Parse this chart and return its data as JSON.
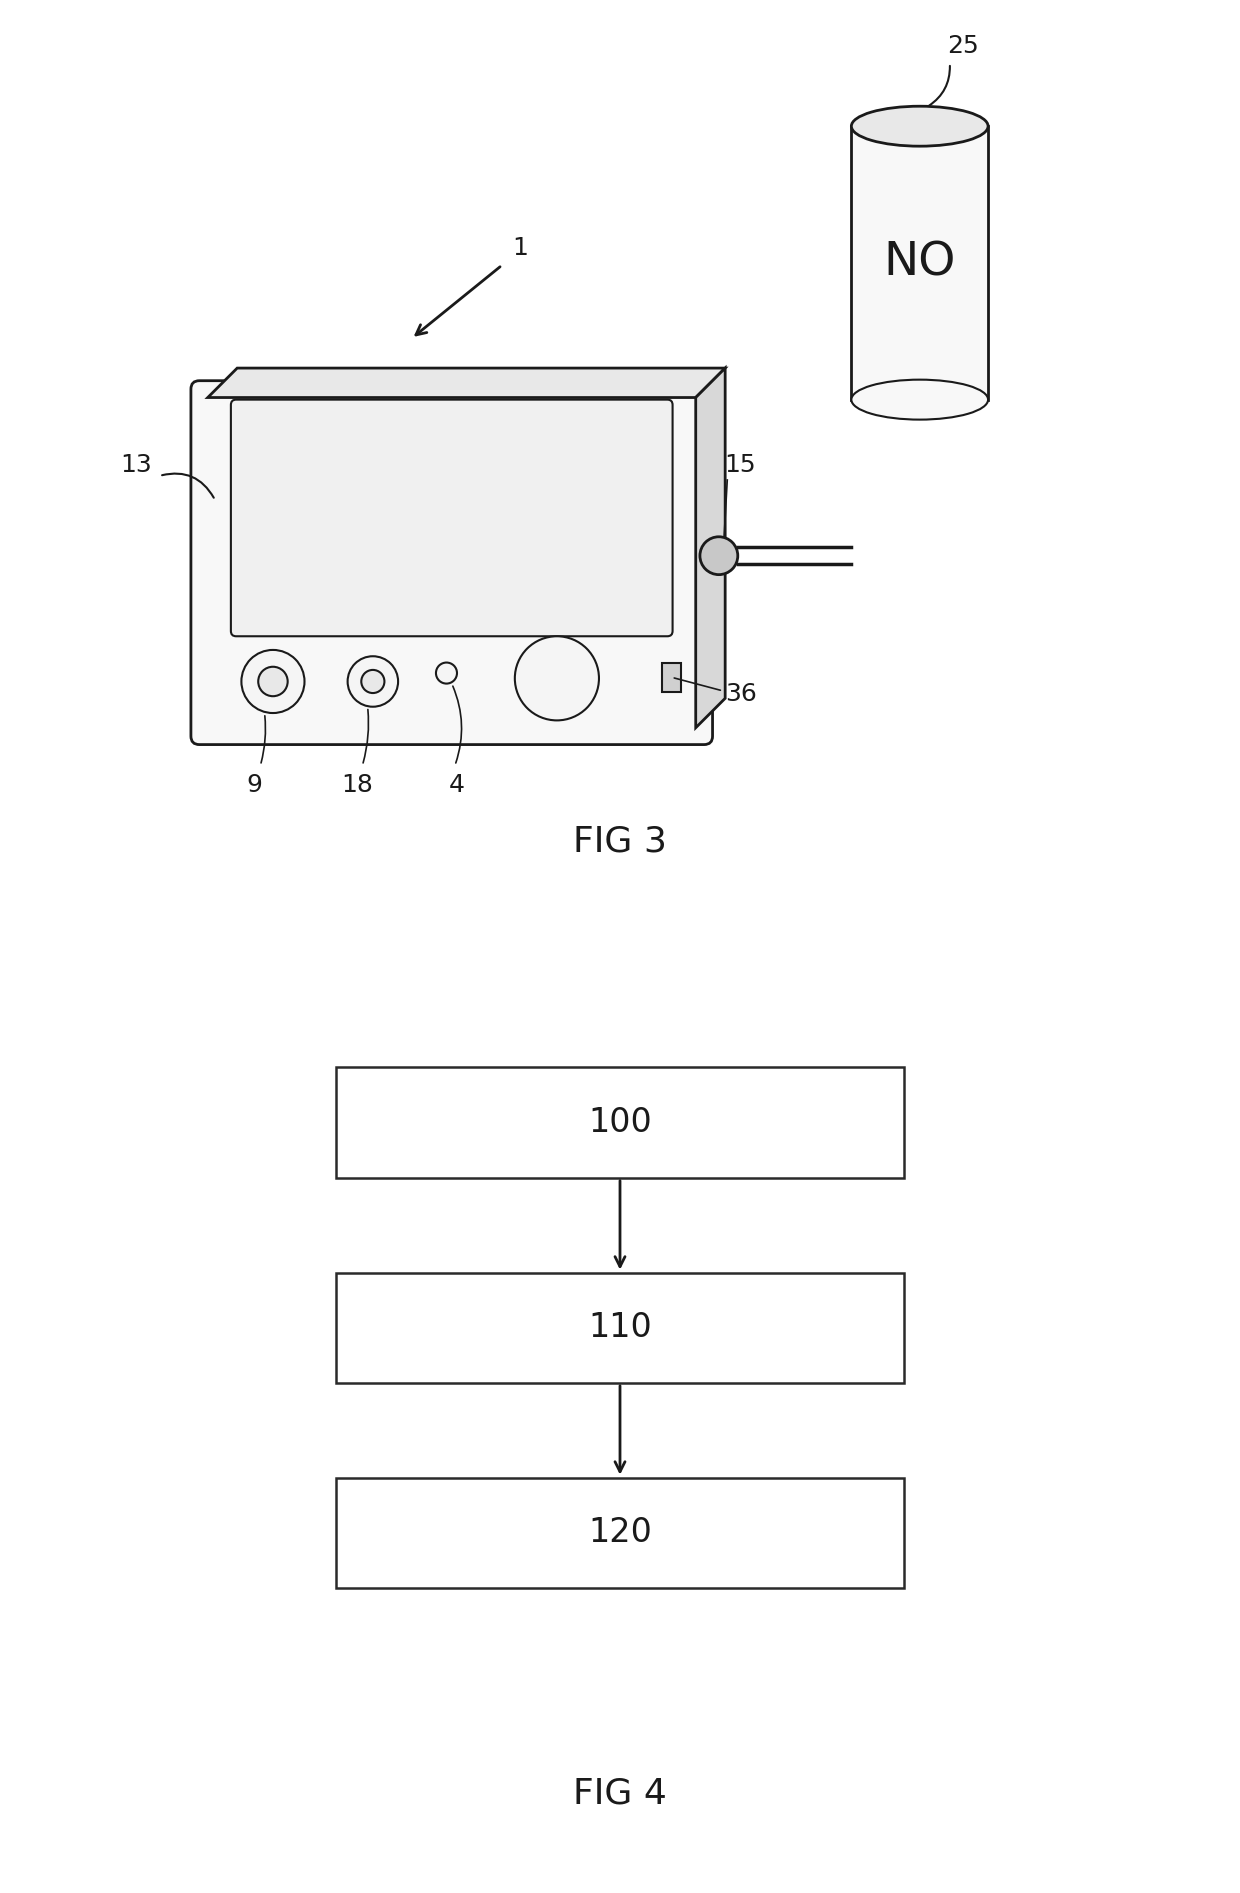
{
  "bg_color": "#ffffff",
  "fig_width": 12.4,
  "fig_height": 18.93,
  "fig3": {
    "label": "FIG 3",
    "cylinder_label": "NO",
    "arrow1_label": "1",
    "label13": "13",
    "label15": "15",
    "label25": "25",
    "label9": "9",
    "label18": "18",
    "label4": "4",
    "label36": "36"
  },
  "fig4": {
    "label": "FIG 4",
    "box1_label": "100",
    "box2_label": "110",
    "box3_label": "120"
  }
}
